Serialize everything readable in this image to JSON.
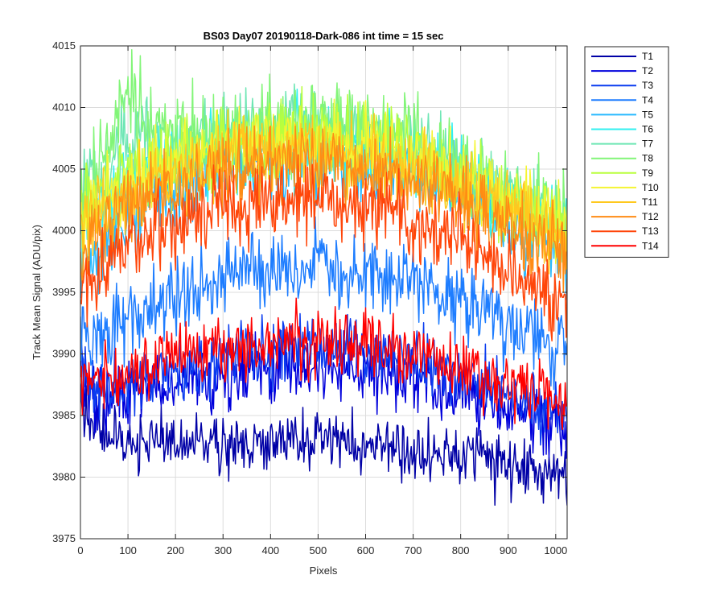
{
  "chart_data": {
    "type": "line",
    "title": "BS03 Day07 20190118-Dark-086 int time = 15 sec",
    "xlabel": "Pixels",
    "ylabel": "Track Mean Signal (ADU/pix)",
    "xlim": [
      0,
      1024
    ],
    "ylim": [
      3975,
      4015
    ],
    "xticks": [
      0,
      100,
      200,
      300,
      400,
      500,
      600,
      700,
      800,
      900,
      1000
    ],
    "yticks": [
      3975,
      3980,
      3985,
      3990,
      3995,
      4000,
      4005,
      4010,
      4015
    ],
    "grid": true,
    "legend_position": "outside-top-right",
    "x": [
      0,
      50,
      100,
      150,
      200,
      250,
      300,
      350,
      400,
      450,
      500,
      550,
      600,
      650,
      700,
      750,
      800,
      850,
      900,
      950,
      1000,
      1024
    ],
    "series": [
      {
        "name": "T1",
        "color": "#0000a6",
        "noise": 1.2,
        "values": [
          3985.5,
          3983.5,
          3983.0,
          3982.8,
          3982.5,
          3982.6,
          3982.8,
          3982.7,
          3982.9,
          3983.0,
          3983.0,
          3982.8,
          3982.6,
          3982.4,
          3982.2,
          3982.0,
          3981.7,
          3981.3,
          3980.9,
          3980.6,
          3980.5,
          3980.6
        ]
      },
      {
        "name": "T2",
        "color": "#0000dc",
        "noise": 1.4,
        "values": [
          3987.2,
          3986.2,
          3986.6,
          3987.1,
          3987.6,
          3988.1,
          3988.5,
          3988.8,
          3989.0,
          3989.1,
          3989.1,
          3989.0,
          3988.8,
          3988.4,
          3988.0,
          3987.5,
          3986.9,
          3986.2,
          3985.5,
          3984.8,
          3984.2,
          3984.0
        ]
      },
      {
        "name": "T3",
        "color": "#0a3cf0",
        "noise": 1.3,
        "values": [
          3987.8,
          3987.0,
          3987.6,
          3988.2,
          3988.8,
          3989.3,
          3989.8,
          3990.2,
          3990.4,
          3990.5,
          3990.5,
          3990.4,
          3990.2,
          3989.8,
          3989.4,
          3988.9,
          3988.2,
          3987.5,
          3986.7,
          3985.9,
          3985.2,
          3985.0
        ]
      },
      {
        "name": "T4",
        "color": "#1e7dff",
        "noise": 1.6,
        "values": [
          3991.5,
          3991.2,
          3993.0,
          3994.0,
          3994.8,
          3995.4,
          3995.9,
          3996.3,
          3996.6,
          3996.8,
          3996.9,
          3996.8,
          3996.6,
          3996.2,
          3995.7,
          3995.1,
          3994.3,
          3993.4,
          3992.4,
          3991.4,
          3990.5,
          3990.2
        ]
      },
      {
        "name": "T5",
        "color": "#28b9ff",
        "noise": 1.6,
        "values": [
          3996.5,
          3998.5,
          4001.0,
          4002.4,
          4003.5,
          4004.3,
          4005.0,
          4005.5,
          4005.9,
          4006.1,
          4006.2,
          4006.1,
          4005.9,
          4005.4,
          4004.8,
          4004.0,
          4003.1,
          4002.0,
          4000.9,
          3999.7,
          3998.6,
          3998.2
        ]
      },
      {
        "name": "T6",
        "color": "#32f0f0",
        "noise": 1.6,
        "values": [
          4001.0,
          4002.5,
          4004.0,
          4004.9,
          4005.6,
          4006.1,
          4006.5,
          4006.8,
          4007.0,
          4007.1,
          4007.1,
          4007.0,
          4006.8,
          4006.4,
          4005.9,
          4005.3,
          4004.5,
          4003.6,
          4002.6,
          4001.6,
          4000.6,
          4000.3
        ]
      },
      {
        "name": "T7",
        "color": "#6ee6b4",
        "noise": 1.6,
        "values": [
          4002.5,
          4004.8,
          4007.8,
          4007.4,
          4007.1,
          4007.4,
          4007.7,
          4008.0,
          4008.2,
          4008.3,
          4008.4,
          4008.2,
          4007.9,
          4007.4,
          4006.8,
          4006.0,
          4005.1,
          4004.0,
          4002.9,
          4001.8,
          4000.8,
          4000.4
        ]
      },
      {
        "name": "T8",
        "color": "#82f578",
        "noise": 1.8,
        "values": [
          4003.5,
          4006.0,
          4011.0,
          4008.6,
          4007.6,
          4007.6,
          4007.8,
          4008.1,
          4008.4,
          4008.5,
          4008.6,
          4008.4,
          4008.1,
          4007.6,
          4007.0,
          4006.2,
          4005.2,
          4004.1,
          4002.9,
          4001.7,
          4000.6,
          4000.2
        ]
      },
      {
        "name": "T9",
        "color": "#b9ff3c",
        "noise": 1.6,
        "values": [
          4002.0,
          4003.5,
          4005.0,
          4005.8,
          4006.4,
          4006.8,
          4007.1,
          4007.3,
          4007.5,
          4007.6,
          4007.6,
          4007.5,
          4007.2,
          4006.8,
          4006.2,
          4005.5,
          4004.7,
          4003.7,
          4002.6,
          4001.5,
          4000.5,
          4000.1
        ]
      },
      {
        "name": "T10",
        "color": "#f5f532",
        "noise": 1.6,
        "values": [
          4001.0,
          4002.6,
          4004.2,
          4005.0,
          4005.7,
          4006.2,
          4006.6,
          4006.9,
          4007.1,
          4007.2,
          4007.2,
          4007.1,
          4006.9,
          4006.5,
          4005.9,
          4005.2,
          4004.4,
          4003.4,
          4002.4,
          4001.3,
          4000.3,
          3999.9
        ]
      },
      {
        "name": "T11",
        "color": "#ffc81e",
        "noise": 1.6,
        "values": [
          4000.0,
          4001.5,
          4003.2,
          4004.2,
          4004.9,
          4005.5,
          4005.9,
          4006.2,
          4006.4,
          4006.5,
          4006.5,
          4006.4,
          4006.1,
          4005.7,
          4005.2,
          4004.5,
          4003.7,
          4002.8,
          4001.8,
          4000.8,
          3999.8,
          3999.4
        ]
      },
      {
        "name": "T12",
        "color": "#ff8c14",
        "noise": 1.6,
        "values": [
          3998.5,
          4000.2,
          4002.0,
          4003.0,
          4003.8,
          4004.4,
          4004.8,
          4005.1,
          4005.3,
          4005.4,
          4005.4,
          4005.3,
          4005.0,
          4004.6,
          4004.0,
          4003.3,
          4002.5,
          4001.5,
          4000.4,
          3999.3,
          3998.3,
          3997.9
        ]
      },
      {
        "name": "T13",
        "color": "#ff460a",
        "noise": 1.6,
        "values": [
          3996.0,
          3997.2,
          3998.8,
          3999.8,
          4000.6,
          4001.2,
          4001.7,
          4002.1,
          4002.4,
          4002.5,
          4002.5,
          4002.4,
          4002.1,
          4001.6,
          4000.9,
          4000.1,
          3999.2,
          3998.1,
          3997.0,
          3995.9,
          3994.9,
          3994.5
        ]
      },
      {
        "name": "T14",
        "color": "#ff0000",
        "noise": 1.3,
        "values": [
          3988.0,
          3987.8,
          3988.6,
          3989.2,
          3989.7,
          3990.1,
          3990.4,
          3990.7,
          3990.9,
          3991.0,
          3991.0,
          3990.9,
          3990.7,
          3990.4,
          3990.0,
          3989.6,
          3989.0,
          3988.4,
          3987.7,
          3987.0,
          3986.3,
          3986.0
        ]
      }
    ]
  }
}
